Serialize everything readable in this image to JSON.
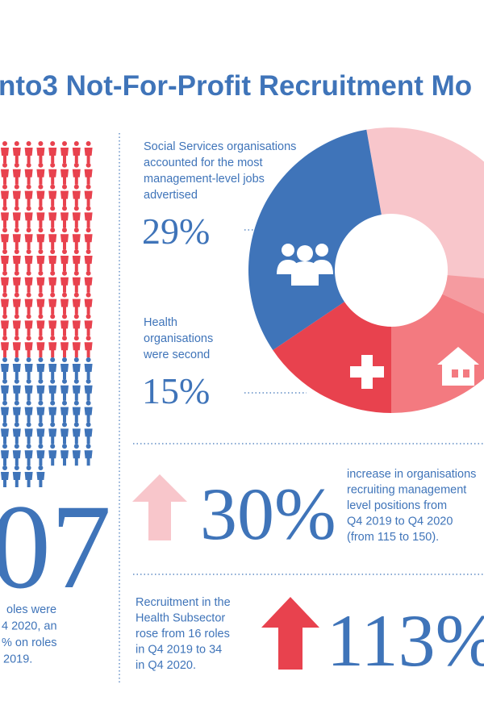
{
  "header": {
    "title": "nto3 Not-For-Profit Recruitment Mo"
  },
  "left_panel": {
    "figure": "07",
    "text_lines": [
      "oles were",
      "4 2020, an",
      "% on roles",
      "2019."
    ]
  },
  "donut_callouts": [
    {
      "text_lines": [
        "Social Services organisations",
        "accounted for the most",
        "management-level jobs",
        "advertised"
      ],
      "value": "29%"
    },
    {
      "text_lines": [
        "Health",
        "organisations",
        "were second"
      ],
      "value": "15%"
    }
  ],
  "stats": [
    {
      "value": "30%",
      "text_lines": [
        "increase in organisations",
        "recruiting management",
        "level positions from",
        "Q4 2019 to Q4 2020",
        "(from 115 to 150)."
      ]
    },
    {
      "value": "113%",
      "text_lines": [
        "Recruitment in the",
        "Health Subsector",
        "rose from 16 roles",
        "in Q4 2019 to 34",
        "in Q4 2020."
      ]
    }
  ]
}
